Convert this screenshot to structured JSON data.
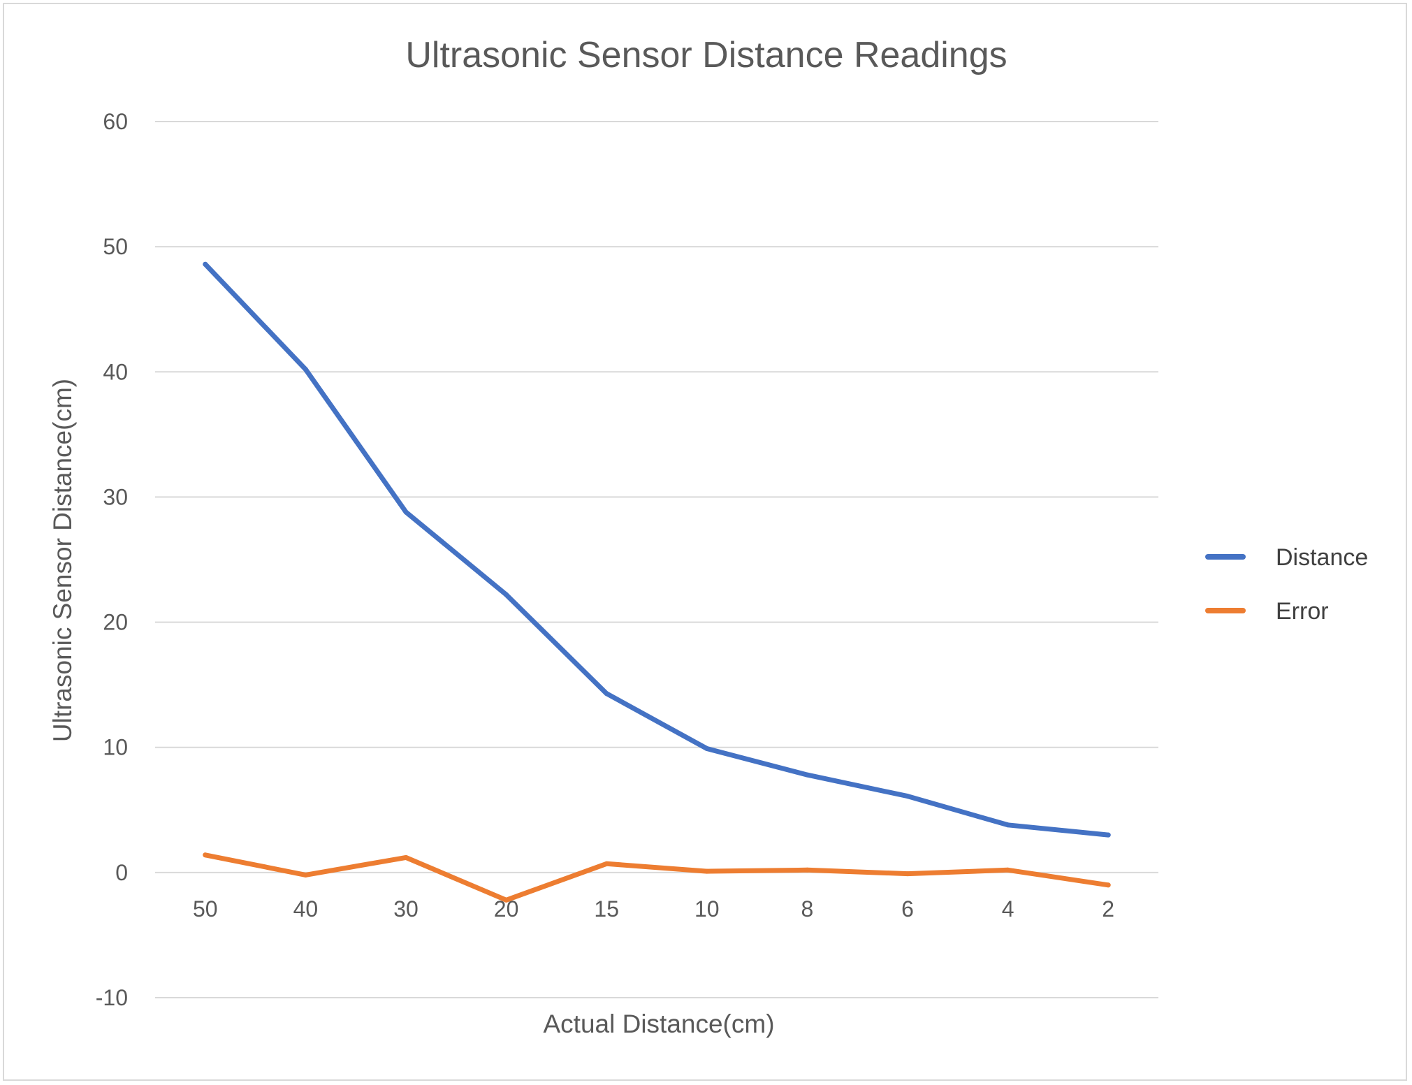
{
  "chart_data": {
    "type": "line",
    "title": "Ultrasonic Sensor Distance Readings",
    "xlabel": "Actual Distance(cm)",
    "ylabel": "Ultrasonic Sensor Distance(cm)",
    "categories": [
      "50",
      "40",
      "30",
      "20",
      "15",
      "10",
      "8",
      "6",
      "4",
      "2"
    ],
    "ylim": [
      -10,
      60
    ],
    "yticks": [
      "-10",
      "0",
      "10",
      "20",
      "30",
      "40",
      "50",
      "60"
    ],
    "grid": true,
    "legend_position": "right",
    "series": [
      {
        "name": "Distance",
        "color": "#4472c4",
        "values": [
          48.6,
          40.2,
          28.8,
          22.2,
          14.3,
          9.9,
          7.8,
          6.1,
          3.8,
          3.0
        ]
      },
      {
        "name": "Error",
        "color": "#ed7d31",
        "values": [
          1.4,
          -0.2,
          1.2,
          -2.2,
          0.7,
          0.1,
          0.2,
          -0.1,
          0.2,
          -1.0
        ]
      }
    ]
  }
}
